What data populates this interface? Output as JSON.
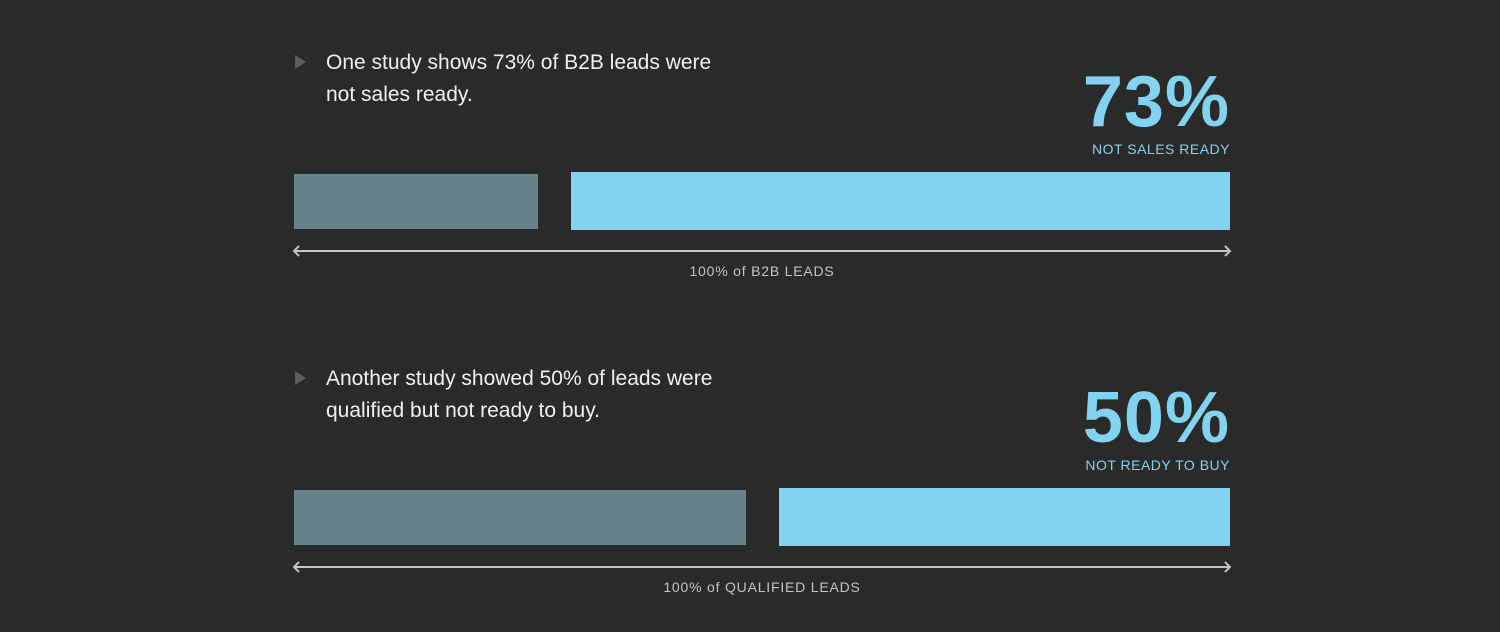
{
  "colors": {
    "background": "#2a2a2a",
    "highlight": "#82d3ef",
    "other": "#65828a",
    "axis": "#c4c4c4"
  },
  "chart_data": [
    {
      "type": "bar",
      "title": "73%",
      "subtitle": "NOT SALES READY",
      "statement": [
        "One study shows 73% of B2B leads were",
        "not sales ready."
      ],
      "xlabel": "100% of B2B LEADS",
      "series": [
        {
          "values": [
            27,
            73
          ]
        }
      ],
      "total": 100
    },
    {
      "type": "bar",
      "title": "50%",
      "subtitle": "NOT READY TO BUY",
      "statement": [
        "Another study showed 50% of leads were",
        "qualified but not ready to buy."
      ],
      "xlabel": "100% of QUALIFIED LEADS",
      "series": [
        {
          "values": [
            50,
            50
          ]
        }
      ],
      "total": 100
    }
  ]
}
